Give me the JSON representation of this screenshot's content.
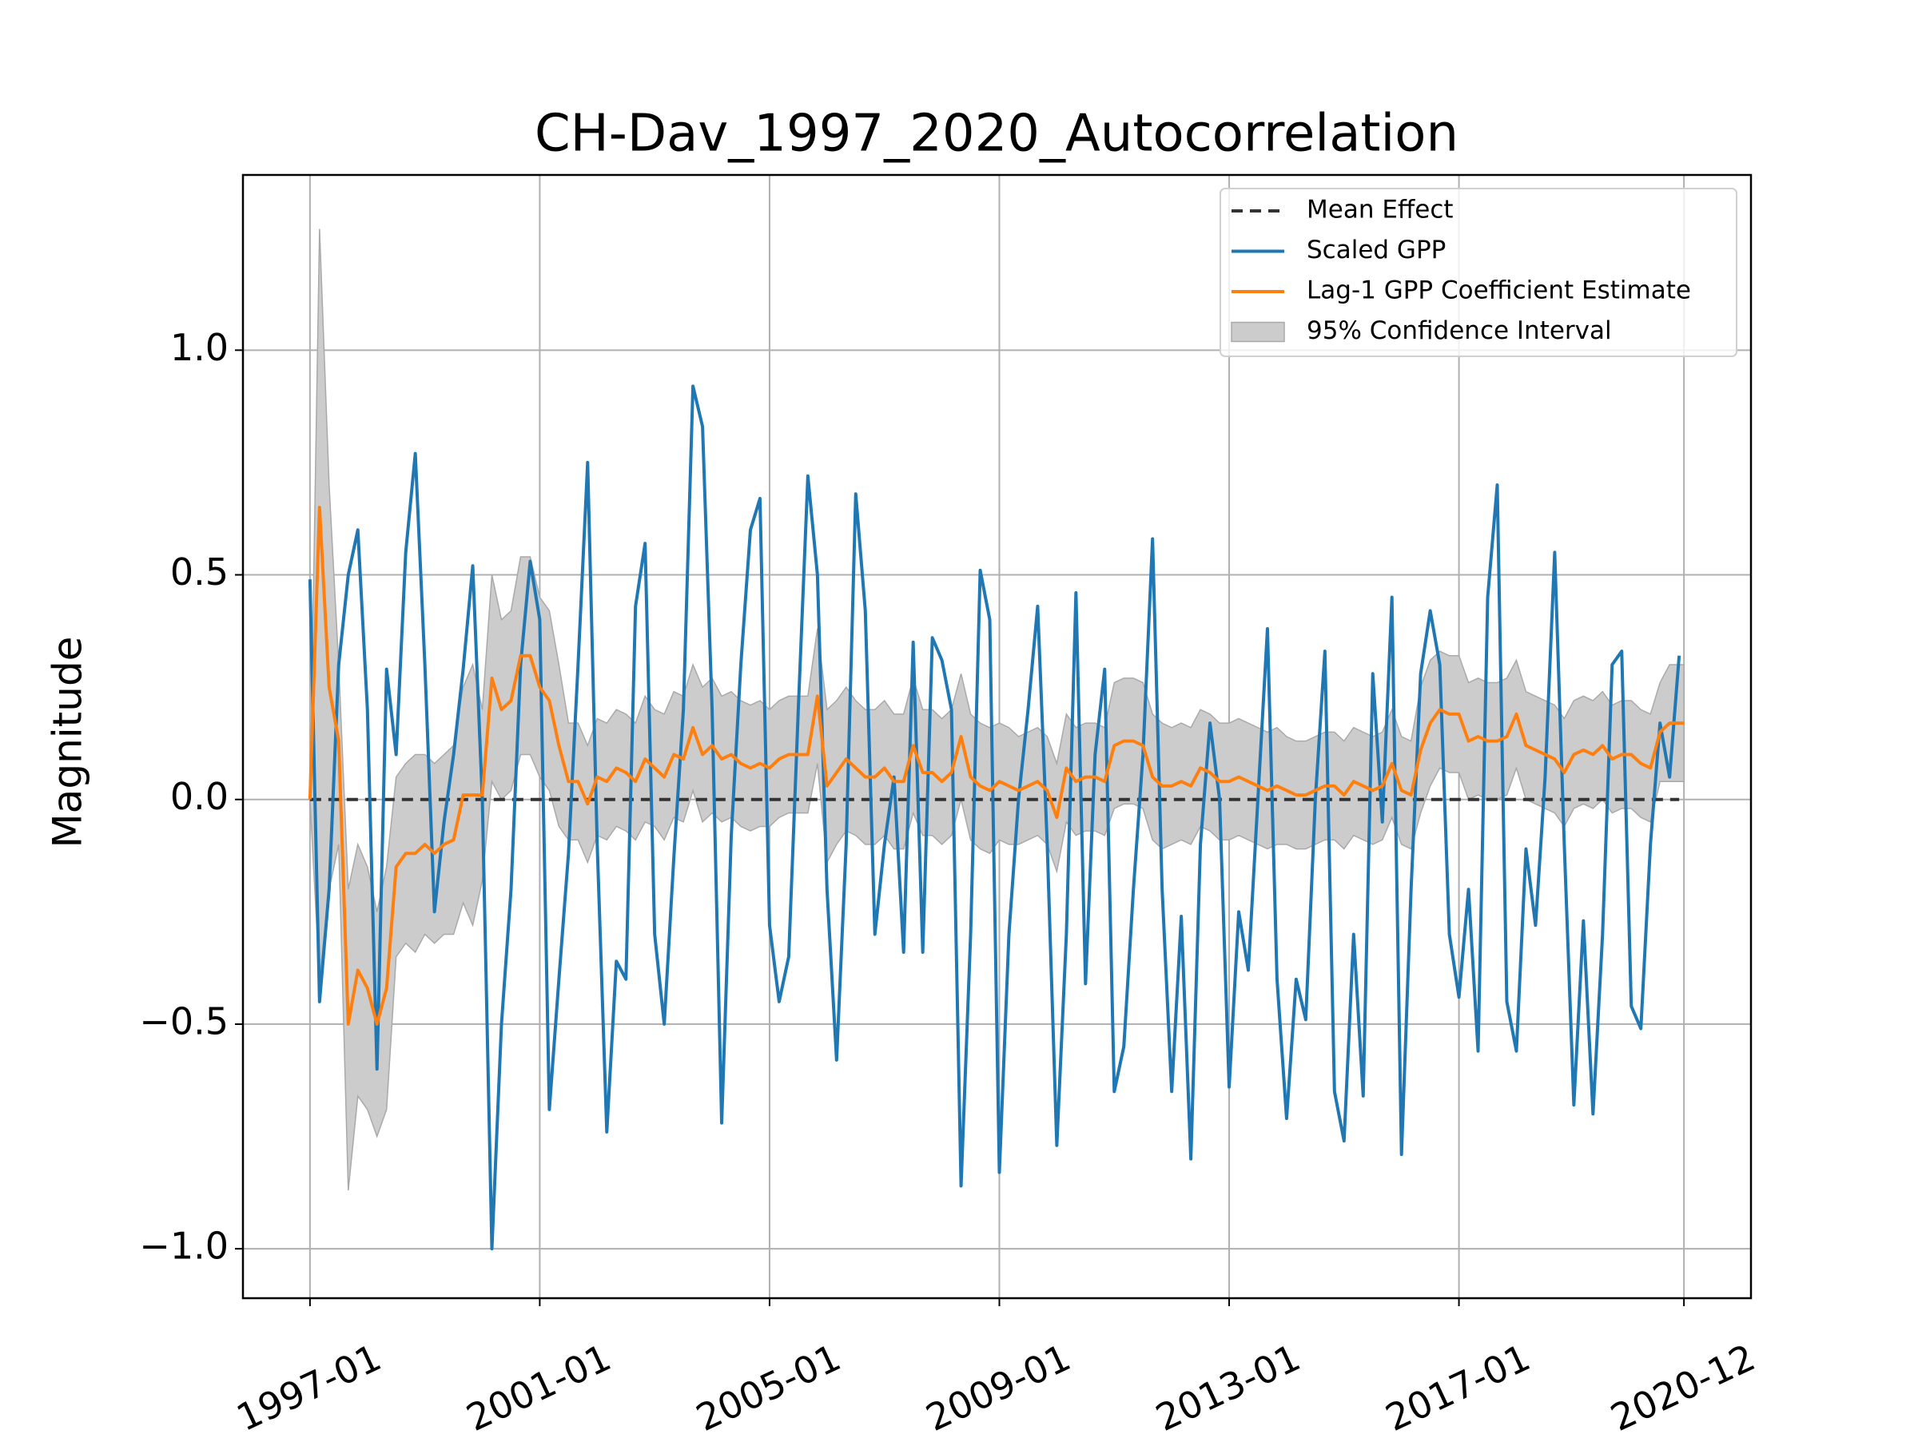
{
  "chart_data": {
    "type": "line",
    "title": "CH-Dav_1997_2020_Autocorrelation",
    "ylabel": "Magnitude",
    "x": [
      "1997-01",
      "1997-03",
      "1997-05",
      "1997-07",
      "1997-09",
      "1997-11",
      "1998-01",
      "1998-03",
      "1998-05",
      "1998-07",
      "1998-09",
      "1998-11",
      "1999-01",
      "1999-03",
      "1999-05",
      "1999-07",
      "1999-09",
      "1999-11",
      "2000-01",
      "2000-03",
      "2000-05",
      "2000-07",
      "2000-09",
      "2000-11",
      "2001-01",
      "2001-03",
      "2001-05",
      "2001-07",
      "2001-09",
      "2001-11",
      "2002-01",
      "2002-03",
      "2002-05",
      "2002-07",
      "2002-09",
      "2002-11",
      "2003-01",
      "2003-03",
      "2003-05",
      "2003-07",
      "2003-09",
      "2003-11",
      "2004-01",
      "2004-03",
      "2004-05",
      "2004-07",
      "2004-09",
      "2004-11",
      "2005-01",
      "2005-03",
      "2005-05",
      "2005-07",
      "2005-09",
      "2005-11",
      "2006-01",
      "2006-03",
      "2006-05",
      "2006-07",
      "2006-09",
      "2006-11",
      "2007-01",
      "2007-03",
      "2007-05",
      "2007-07",
      "2007-09",
      "2007-11",
      "2008-01",
      "2008-03",
      "2008-05",
      "2008-07",
      "2008-09",
      "2008-11",
      "2009-01",
      "2009-03",
      "2009-05",
      "2009-07",
      "2009-09",
      "2009-11",
      "2010-01",
      "2010-03",
      "2010-05",
      "2010-07",
      "2010-09",
      "2010-11",
      "2011-01",
      "2011-03",
      "2011-05",
      "2011-07",
      "2011-09",
      "2011-11",
      "2012-01",
      "2012-03",
      "2012-05",
      "2012-07",
      "2012-09",
      "2012-11",
      "2013-01",
      "2013-03",
      "2013-05",
      "2013-07",
      "2013-09",
      "2013-11",
      "2014-01",
      "2014-03",
      "2014-05",
      "2014-07",
      "2014-09",
      "2014-11",
      "2015-01",
      "2015-03",
      "2015-05",
      "2015-07",
      "2015-09",
      "2015-11",
      "2016-01",
      "2016-03",
      "2016-05",
      "2016-07",
      "2016-09",
      "2016-11",
      "2017-01",
      "2017-03",
      "2017-05",
      "2017-07",
      "2017-09",
      "2017-11",
      "2018-01",
      "2018-03",
      "2018-05",
      "2018-07",
      "2018-09",
      "2018-11",
      "2019-01",
      "2019-03",
      "2019-05",
      "2019-07",
      "2019-09",
      "2019-11",
      "2020-01",
      "2020-03",
      "2020-05",
      "2020-07",
      "2020-09",
      "2020-11",
      "2020-12"
    ],
    "mean_effect": {
      "name": "Mean Effect",
      "color": "#333333",
      "value": 0
    },
    "series": [
      {
        "name": "Scaled GPP",
        "color": "#1f77b4",
        "values": [
          0.49,
          -0.45,
          -0.2,
          0.3,
          0.5,
          0.6,
          0.2,
          -0.6,
          0.29,
          0.1,
          0.55,
          0.77,
          0.3,
          -0.25,
          -0.05,
          0.1,
          0.29,
          0.52,
          0.0,
          -1.0,
          -0.5,
          -0.2,
          0.3,
          0.53,
          0.4,
          -0.69,
          -0.4,
          -0.12,
          0.3,
          0.75,
          -0.1,
          -0.74,
          -0.36,
          -0.4,
          0.43,
          0.57,
          -0.3,
          -0.5,
          -0.13,
          0.2,
          0.92,
          0.83,
          0.2,
          -0.72,
          -0.08,
          0.3,
          0.6,
          0.67,
          -0.28,
          -0.45,
          -0.35,
          0.2,
          0.72,
          0.5,
          -0.2,
          -0.58,
          -0.1,
          0.68,
          0.42,
          -0.3,
          -0.1,
          0.05,
          -0.34,
          0.35,
          -0.34,
          0.36,
          0.31,
          0.2,
          -0.86,
          -0.3,
          0.51,
          0.4,
          -0.83,
          -0.3,
          0.0,
          0.2,
          0.43,
          -0.1,
          -0.77,
          -0.3,
          0.46,
          -0.41,
          0.1,
          0.29,
          -0.65,
          -0.55,
          -0.2,
          0.1,
          0.58,
          -0.2,
          -0.65,
          -0.26,
          -0.8,
          -0.1,
          0.17,
          0.0,
          -0.64,
          -0.25,
          -0.38,
          0.0,
          0.38,
          -0.4,
          -0.71,
          -0.4,
          -0.49,
          0.0,
          0.33,
          -0.65,
          -0.76,
          -0.3,
          -0.66,
          0.28,
          -0.05,
          0.45,
          -0.79,
          -0.2,
          0.28,
          0.42,
          0.3,
          -0.3,
          -0.44,
          -0.2,
          -0.56,
          0.45,
          0.7,
          -0.45,
          -0.56,
          -0.11,
          -0.28,
          0.05,
          0.55,
          -0.1,
          -0.68,
          -0.27,
          -0.7,
          -0.3,
          0.3,
          0.33,
          -0.46,
          -0.51,
          -0.1,
          0.17,
          0.05,
          0.32,
          null
        ]
      },
      {
        "name": "Lag-1 GPP Coefficient Estimate",
        "color": "#ff7f0e",
        "values": [
          0.0,
          0.65,
          0.25,
          0.13,
          -0.5,
          -0.38,
          -0.42,
          -0.5,
          -0.42,
          -0.15,
          -0.12,
          -0.12,
          -0.1,
          -0.12,
          -0.1,
          -0.09,
          0.01,
          0.01,
          0.01,
          0.27,
          0.2,
          0.22,
          0.32,
          0.32,
          0.25,
          0.22,
          0.12,
          0.04,
          0.04,
          -0.01,
          0.05,
          0.04,
          0.07,
          0.06,
          0.04,
          0.09,
          0.07,
          0.05,
          0.1,
          0.09,
          0.16,
          0.1,
          0.12,
          0.09,
          0.1,
          0.08,
          0.07,
          0.08,
          0.07,
          0.09,
          0.1,
          0.1,
          0.1,
          0.23,
          0.03,
          0.06,
          0.09,
          0.07,
          0.05,
          0.05,
          0.07,
          0.04,
          0.04,
          0.12,
          0.06,
          0.06,
          0.04,
          0.06,
          0.14,
          0.05,
          0.03,
          0.02,
          0.04,
          0.03,
          0.02,
          0.03,
          0.04,
          0.02,
          -0.04,
          0.07,
          0.04,
          0.05,
          0.05,
          0.04,
          0.12,
          0.13,
          0.13,
          0.12,
          0.05,
          0.03,
          0.03,
          0.04,
          0.03,
          0.07,
          0.06,
          0.04,
          0.04,
          0.05,
          0.04,
          0.03,
          0.02,
          0.03,
          0.02,
          0.01,
          0.01,
          0.02,
          0.03,
          0.03,
          0.01,
          0.04,
          0.03,
          0.02,
          0.03,
          0.08,
          0.02,
          0.01,
          0.11,
          0.17,
          0.2,
          0.19,
          0.19,
          0.13,
          0.14,
          0.13,
          0.13,
          0.14,
          0.19,
          0.12,
          0.11,
          0.1,
          0.09,
          0.06,
          0.1,
          0.11,
          0.1,
          0.12,
          0.09,
          0.1,
          0.1,
          0.08,
          0.07,
          0.15,
          0.17,
          0.17,
          0.17
        ]
      }
    ],
    "band": {
      "name": "95% Confidence Interval",
      "color": "#cccccc",
      "edge": "#a9a9a9",
      "lower": [
        0.0,
        -0.4,
        -0.2,
        -0.1,
        -0.87,
        -0.66,
        -0.69,
        -0.75,
        -0.69,
        -0.35,
        -0.32,
        -0.34,
        -0.3,
        -0.32,
        -0.3,
        -0.3,
        -0.23,
        -0.28,
        -0.18,
        0.04,
        0.0,
        0.02,
        0.1,
        0.1,
        0.05,
        0.02,
        -0.06,
        -0.09,
        -0.09,
        -0.14,
        -0.08,
        -0.09,
        -0.06,
        -0.07,
        -0.09,
        -0.05,
        -0.06,
        -0.09,
        -0.04,
        -0.05,
        0.02,
        -0.05,
        -0.03,
        -0.05,
        -0.04,
        -0.06,
        -0.07,
        -0.06,
        -0.06,
        -0.04,
        -0.03,
        -0.03,
        -0.03,
        0.08,
        -0.14,
        -0.1,
        -0.07,
        -0.08,
        -0.1,
        -0.1,
        -0.08,
        -0.11,
        -0.11,
        -0.03,
        -0.08,
        -0.08,
        -0.1,
        -0.08,
        0.0,
        -0.09,
        -0.11,
        -0.12,
        -0.09,
        -0.1,
        -0.1,
        -0.09,
        -0.08,
        -0.1,
        -0.16,
        -0.05,
        -0.08,
        -0.07,
        -0.07,
        -0.08,
        -0.02,
        -0.01,
        -0.01,
        -0.02,
        -0.09,
        -0.11,
        -0.1,
        -0.09,
        -0.1,
        -0.06,
        -0.07,
        -0.09,
        -0.09,
        -0.08,
        -0.09,
        -0.1,
        -0.11,
        -0.1,
        -0.1,
        -0.11,
        -0.11,
        -0.1,
        -0.09,
        -0.09,
        -0.11,
        -0.08,
        -0.09,
        -0.1,
        -0.09,
        -0.04,
        -0.1,
        -0.11,
        -0.03,
        0.03,
        0.07,
        0.06,
        0.06,
        0.0,
        0.01,
        0.0,
        0.0,
        0.01,
        0.07,
        0.0,
        -0.01,
        -0.02,
        -0.03,
        -0.06,
        -0.02,
        -0.01,
        -0.02,
        0.0,
        -0.03,
        -0.02,
        -0.02,
        -0.04,
        -0.05,
        0.04,
        0.04,
        0.04,
        0.04
      ],
      "upper": [
        0.0,
        1.27,
        0.7,
        0.3,
        -0.2,
        -0.1,
        -0.15,
        -0.25,
        -0.15,
        0.05,
        0.08,
        0.1,
        0.1,
        0.08,
        0.1,
        0.12,
        0.25,
        0.3,
        0.2,
        0.5,
        0.4,
        0.42,
        0.54,
        0.54,
        0.45,
        0.42,
        0.3,
        0.17,
        0.17,
        0.12,
        0.18,
        0.17,
        0.2,
        0.19,
        0.17,
        0.23,
        0.2,
        0.19,
        0.24,
        0.23,
        0.3,
        0.25,
        0.27,
        0.23,
        0.24,
        0.22,
        0.21,
        0.22,
        0.2,
        0.22,
        0.23,
        0.23,
        0.23,
        0.38,
        0.2,
        0.22,
        0.25,
        0.22,
        0.2,
        0.2,
        0.22,
        0.19,
        0.19,
        0.27,
        0.2,
        0.2,
        0.18,
        0.2,
        0.28,
        0.19,
        0.17,
        0.16,
        0.17,
        0.16,
        0.14,
        0.15,
        0.16,
        0.14,
        0.08,
        0.19,
        0.16,
        0.17,
        0.17,
        0.16,
        0.26,
        0.27,
        0.27,
        0.26,
        0.19,
        0.17,
        0.16,
        0.17,
        0.16,
        0.2,
        0.19,
        0.17,
        0.17,
        0.18,
        0.17,
        0.16,
        0.15,
        0.16,
        0.14,
        0.13,
        0.13,
        0.14,
        0.15,
        0.15,
        0.13,
        0.16,
        0.15,
        0.14,
        0.15,
        0.2,
        0.14,
        0.13,
        0.25,
        0.31,
        0.33,
        0.32,
        0.32,
        0.26,
        0.27,
        0.26,
        0.26,
        0.27,
        0.31,
        0.24,
        0.23,
        0.22,
        0.21,
        0.18,
        0.22,
        0.23,
        0.22,
        0.24,
        0.21,
        0.22,
        0.22,
        0.2,
        0.19,
        0.26,
        0.3,
        0.3,
        0.3
      ]
    },
    "xlim": [
      "1995-11",
      "2022-02"
    ],
    "xticks": [
      "1997-01",
      "2001-01",
      "2005-01",
      "2009-01",
      "2013-01",
      "2017-01",
      "2020-12"
    ],
    "ylim": [
      -1.11,
      1.39
    ],
    "yticks": [
      {
        "value": -1,
        "label": "−1.0"
      },
      {
        "value": -0.5,
        "label": "−0.5"
      },
      {
        "value": 0,
        "label": "0.0"
      },
      {
        "value": 0.5,
        "label": "0.5"
      },
      {
        "value": 1,
        "label": "1.0"
      }
    ],
    "grid": true,
    "legend": "upper right"
  }
}
